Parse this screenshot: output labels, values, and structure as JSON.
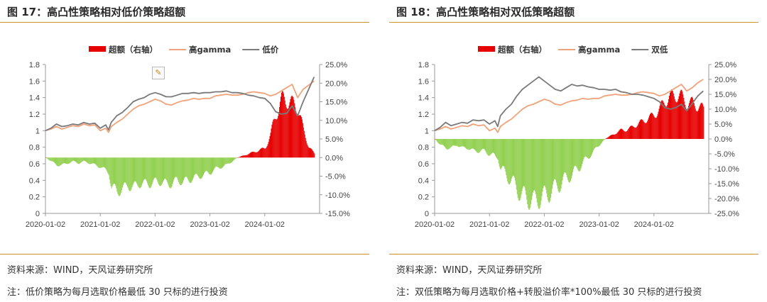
{
  "left": {
    "title": "图 17：高凸性策略相对低价策略超额",
    "source": "资料来源：WIND，天风证券研究所",
    "note": "注：低价策略为每月选取价格最低 30 只标的进行投资",
    "chart_data": {
      "type": "line",
      "title": "",
      "legend": [
        "超额（右轴）",
        "高gamma",
        "低价"
      ],
      "legend_placement": "top",
      "x_tick_labels": [
        "2020-01-02",
        "2021-01-02",
        "2022-01-02",
        "2023-01-02",
        "2024-01-02"
      ],
      "left_axis": {
        "ticks": [
          "0",
          "0.2",
          "0.4",
          "0.6",
          "0.8",
          "1",
          "1.2",
          "1.4",
          "1.6",
          "1.8"
        ],
        "ylim": [
          0,
          1.8
        ]
      },
      "right_axis": {
        "ticks": [
          "-15.0%",
          "-10.0%",
          "-5.0%",
          "0.0%",
          "5.0%",
          "10.0%",
          "15.0%",
          "20.0%",
          "25.0%"
        ],
        "ylim": [
          -15,
          25
        ]
      },
      "grid": false,
      "series": [
        {
          "name": "高gamma",
          "axis": "left",
          "color": "#f0a37a",
          "x": [
            2020.0,
            2020.1,
            2020.2,
            2020.3,
            2020.4,
            2020.5,
            2020.6,
            2020.7,
            2020.8,
            2020.9,
            2021.0,
            2021.1,
            2021.15,
            2021.2,
            2021.3,
            2021.4,
            2021.5,
            2021.6,
            2021.7,
            2021.8,
            2021.9,
            2022.0,
            2022.1,
            2022.2,
            2022.3,
            2022.4,
            2022.5,
            2022.6,
            2022.7,
            2022.8,
            2022.9,
            2023.0,
            2023.1,
            2023.2,
            2023.3,
            2023.4,
            2023.5,
            2023.6,
            2023.7,
            2023.8,
            2023.9,
            2024.0,
            2024.1,
            2024.2,
            2024.3,
            2024.4,
            2024.5,
            2024.6,
            2024.7,
            2024.8,
            2024.9
          ],
          "values": [
            1.0,
            1.02,
            1.05,
            1.02,
            1.04,
            1.06,
            1.05,
            1.08,
            1.06,
            1.07,
            1.0,
            1.03,
            0.98,
            1.05,
            1.1,
            1.14,
            1.2,
            1.26,
            1.3,
            1.32,
            1.35,
            1.38,
            1.36,
            1.32,
            1.31,
            1.34,
            1.36,
            1.37,
            1.39,
            1.38,
            1.39,
            1.39,
            1.42,
            1.43,
            1.44,
            1.43,
            1.43,
            1.44,
            1.46,
            1.47,
            1.46,
            1.45,
            1.42,
            1.44,
            1.48,
            1.52,
            1.56,
            1.4,
            1.5,
            1.55,
            1.6
          ]
        },
        {
          "name": "低价",
          "axis": "left",
          "color": "#7a7a7a",
          "x": [
            2020.0,
            2020.1,
            2020.2,
            2020.3,
            2020.4,
            2020.5,
            2020.6,
            2020.7,
            2020.8,
            2020.9,
            2021.0,
            2021.1,
            2021.15,
            2021.2,
            2021.3,
            2021.4,
            2021.5,
            2021.6,
            2021.7,
            2021.8,
            2021.9,
            2022.0,
            2022.1,
            2022.2,
            2022.3,
            2022.4,
            2022.5,
            2022.6,
            2022.7,
            2022.8,
            2022.9,
            2023.0,
            2023.1,
            2023.2,
            2023.3,
            2023.4,
            2023.5,
            2023.6,
            2023.7,
            2023.8,
            2023.9,
            2024.0,
            2024.1,
            2024.2,
            2024.3,
            2024.4,
            2024.5,
            2024.6,
            2024.7,
            2024.8,
            2024.9
          ],
          "values": [
            1.0,
            1.03,
            1.08,
            1.05,
            1.06,
            1.08,
            1.07,
            1.1,
            1.08,
            1.09,
            1.03,
            1.07,
            1.01,
            1.1,
            1.18,
            1.22,
            1.28,
            1.35,
            1.38,
            1.4,
            1.44,
            1.46,
            1.44,
            1.41,
            1.41,
            1.43,
            1.45,
            1.45,
            1.46,
            1.45,
            1.46,
            1.46,
            1.47,
            1.47,
            1.48,
            1.46,
            1.46,
            1.45,
            1.43,
            1.42,
            1.4,
            1.39,
            1.33,
            1.23,
            1.2,
            1.21,
            1.3,
            1.18,
            1.35,
            1.5,
            1.65
          ]
        },
        {
          "name": "超额（右轴）",
          "axis": "right",
          "type": "bar",
          "color_pos": "#e60000",
          "color_neg": "#92d050",
          "x": [
            2020.0,
            2020.1,
            2020.2,
            2020.3,
            2020.4,
            2020.5,
            2020.6,
            2020.7,
            2020.8,
            2020.9,
            2021.0,
            2021.1,
            2021.15,
            2021.2,
            2021.3,
            2021.4,
            2021.5,
            2021.6,
            2021.7,
            2021.8,
            2021.9,
            2022.0,
            2022.1,
            2022.2,
            2022.3,
            2022.4,
            2022.5,
            2022.6,
            2022.7,
            2022.8,
            2022.9,
            2023.0,
            2023.1,
            2023.2,
            2023.3,
            2023.4,
            2023.5,
            2023.6,
            2023.7,
            2023.8,
            2023.9,
            2024.0,
            2024.1,
            2024.2,
            2024.3,
            2024.4,
            2024.5,
            2024.6,
            2024.7,
            2024.8,
            2024.9
          ],
          "values": [
            0,
            -1,
            -2,
            -2,
            -1.5,
            -1,
            -1.5,
            -1,
            -1.5,
            -2,
            -2.5,
            -3.5,
            -4,
            -8,
            -9,
            -8.5,
            -7.5,
            -8,
            -7,
            -7,
            -7,
            -6.5,
            -6.5,
            -7,
            -7,
            -6,
            -6.5,
            -6,
            -5.5,
            -5,
            -4.5,
            -4,
            -3,
            -2.5,
            -2,
            -1,
            0,
            0.5,
            1,
            1.5,
            2,
            2.5,
            6,
            12,
            15,
            16,
            14,
            14,
            7,
            3,
            1
          ]
        }
      ]
    }
  },
  "right": {
    "title": "图 18：高凸性策略相对双低策略超额",
    "source": "资料来源：WIND，天风证券研究所",
    "note": "注：双低策略为每月选取价格+转股溢价率*100%最低 30 只标的进行投资",
    "chart_data": {
      "type": "line",
      "title": "",
      "legend": [
        "超额（右轴）",
        "高gamma",
        "双低"
      ],
      "legend_placement": "top",
      "x_tick_labels": [
        "2020-01-02",
        "2021-01-02",
        "2022-01-02",
        "2023-01-02",
        "2024-01-02"
      ],
      "left_axis": {
        "ticks": [
          "0",
          "0.2",
          "0.4",
          "0.6",
          "0.8",
          "1",
          "1.2",
          "1.4",
          "1.6",
          "1.8"
        ],
        "ylim": [
          0,
          1.8
        ]
      },
      "right_axis": {
        "ticks": [
          "-25.0%",
          "-20.0%",
          "-15.0%",
          "-10.0%",
          "-5.0%",
          "0.0%",
          "5.0%",
          "10.0%",
          "15.0%",
          "20.0%",
          "25.0%"
        ],
        "ylim": [
          -25,
          25
        ]
      },
      "grid": false,
      "series": [
        {
          "name": "高gamma",
          "axis": "left",
          "color": "#f0a37a",
          "x": [
            2020.0,
            2020.1,
            2020.2,
            2020.3,
            2020.4,
            2020.5,
            2020.6,
            2020.7,
            2020.8,
            2020.9,
            2021.0,
            2021.1,
            2021.15,
            2021.2,
            2021.3,
            2021.4,
            2021.5,
            2021.6,
            2021.7,
            2021.8,
            2021.9,
            2022.0,
            2022.1,
            2022.2,
            2022.3,
            2022.4,
            2022.5,
            2022.6,
            2022.7,
            2022.8,
            2022.9,
            2023.0,
            2023.1,
            2023.2,
            2023.3,
            2023.4,
            2023.5,
            2023.6,
            2023.7,
            2023.8,
            2023.9,
            2024.0,
            2024.1,
            2024.2,
            2024.3,
            2024.4,
            2024.5,
            2024.6,
            2024.7,
            2024.8,
            2024.9
          ],
          "values": [
            1.0,
            1.02,
            1.05,
            1.02,
            1.04,
            1.06,
            1.05,
            1.08,
            1.06,
            1.07,
            1.0,
            1.03,
            0.98,
            1.05,
            1.1,
            1.14,
            1.2,
            1.26,
            1.3,
            1.32,
            1.35,
            1.38,
            1.36,
            1.32,
            1.31,
            1.34,
            1.36,
            1.37,
            1.39,
            1.38,
            1.39,
            1.39,
            1.42,
            1.43,
            1.44,
            1.43,
            1.43,
            1.44,
            1.46,
            1.47,
            1.46,
            1.45,
            1.42,
            1.44,
            1.48,
            1.52,
            1.56,
            1.48,
            1.52,
            1.58,
            1.62
          ]
        },
        {
          "name": "双低",
          "axis": "left",
          "color": "#7a7a7a",
          "x": [
            2020.0,
            2020.1,
            2020.2,
            2020.3,
            2020.4,
            2020.5,
            2020.6,
            2020.7,
            2020.8,
            2020.9,
            2021.0,
            2021.1,
            2021.15,
            2021.2,
            2021.3,
            2021.4,
            2021.5,
            2021.6,
            2021.7,
            2021.8,
            2021.9,
            2022.0,
            2022.1,
            2022.2,
            2022.3,
            2022.4,
            2022.5,
            2022.6,
            2022.7,
            2022.8,
            2022.9,
            2023.0,
            2023.1,
            2023.2,
            2023.3,
            2023.4,
            2023.5,
            2023.6,
            2023.7,
            2023.8,
            2023.9,
            2024.0,
            2024.1,
            2024.2,
            2024.3,
            2024.4,
            2024.5,
            2024.6,
            2024.7,
            2024.8,
            2024.9
          ],
          "values": [
            1.0,
            1.04,
            1.1,
            1.06,
            1.08,
            1.1,
            1.09,
            1.13,
            1.12,
            1.13,
            1.08,
            1.12,
            1.05,
            1.18,
            1.26,
            1.32,
            1.42,
            1.5,
            1.55,
            1.6,
            1.65,
            1.6,
            1.55,
            1.5,
            1.48,
            1.52,
            1.56,
            1.54,
            1.55,
            1.53,
            1.52,
            1.5,
            1.5,
            1.49,
            1.5,
            1.47,
            1.46,
            1.44,
            1.44,
            1.43,
            1.41,
            1.39,
            1.35,
            1.28,
            1.26,
            1.28,
            1.32,
            1.24,
            1.33,
            1.42,
            1.48
          ]
        },
        {
          "name": "超额（右轴）",
          "axis": "right",
          "type": "bar",
          "color_pos": "#e60000",
          "color_neg": "#92d050",
          "x": [
            2020.0,
            2020.1,
            2020.2,
            2020.3,
            2020.4,
            2020.5,
            2020.6,
            2020.7,
            2020.8,
            2020.9,
            2021.0,
            2021.1,
            2021.15,
            2021.2,
            2021.3,
            2021.4,
            2021.5,
            2021.6,
            2021.7,
            2021.8,
            2021.9,
            2022.0,
            2022.1,
            2022.2,
            2022.3,
            2022.4,
            2022.5,
            2022.6,
            2022.7,
            2022.8,
            2022.9,
            2023.0,
            2023.1,
            2023.2,
            2023.3,
            2023.4,
            2023.5,
            2023.6,
            2023.7,
            2023.8,
            2023.9,
            2024.0,
            2024.1,
            2024.2,
            2024.3,
            2024.4,
            2024.5,
            2024.6,
            2024.7,
            2024.8,
            2024.9
          ],
          "values": [
            0,
            -2,
            -3,
            -3,
            -2,
            -3,
            -3,
            -4,
            -4,
            -4,
            -5,
            -6,
            -6,
            -10,
            -12,
            -14,
            -17,
            -19,
            -20,
            -21,
            -20,
            -19,
            -18,
            -16,
            -15,
            -13,
            -12,
            -10,
            -8,
            -6,
            -4,
            -2,
            0,
            1,
            2,
            3,
            3,
            4,
            5,
            6,
            7,
            8,
            10,
            13,
            14,
            15,
            14,
            12,
            12,
            11,
            10
          ]
        }
      ]
    }
  }
}
